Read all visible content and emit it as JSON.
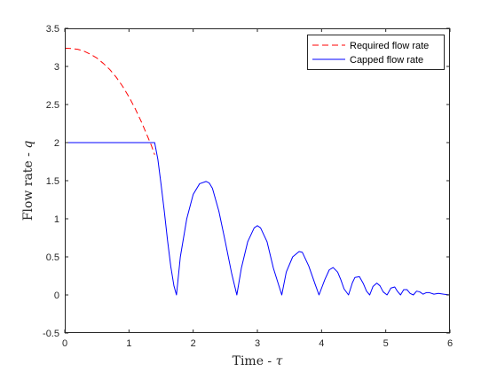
{
  "chart_data": {
    "type": "line",
    "title": "",
    "xlabel_prefix": "Time - ",
    "xlabel_symbol": "τ",
    "ylabel_prefix": "Flow rate - ",
    "ylabel_symbol": "q",
    "xlim": [
      0,
      6
    ],
    "ylim": [
      -0.5,
      3.5
    ],
    "xticks": [
      "0",
      "1",
      "2",
      "3",
      "4",
      "5",
      "6"
    ],
    "yticks": [
      "-0.5",
      "0",
      "0.5",
      "1",
      "1.5",
      "2",
      "2.5",
      "3",
      "3.5"
    ],
    "grid": false,
    "legend_position": "top-right",
    "series": [
      {
        "name": "Required flow rate",
        "color": "#ff0000",
        "style": "dashed",
        "x": [
          0,
          0.1,
          0.2,
          0.3,
          0.4,
          0.5,
          0.6,
          0.7,
          0.8,
          0.9,
          1.0,
          1.1,
          1.2,
          1.3,
          1.35,
          1.4
        ],
        "y": [
          3.24,
          3.235,
          3.225,
          3.2,
          3.16,
          3.11,
          3.04,
          2.96,
          2.86,
          2.74,
          2.6,
          2.44,
          2.26,
          2.06,
          1.96,
          1.84
        ]
      },
      {
        "name": "Capped flow rate",
        "color": "#0000ff",
        "style": "solid",
        "x": [
          0,
          1.2,
          1.4,
          1.45,
          1.5,
          1.55,
          1.6,
          1.65,
          1.7,
          1.74,
          1.8,
          1.9,
          2.0,
          2.1,
          2.2,
          2.25,
          2.3,
          2.4,
          2.5,
          2.6,
          2.68,
          2.75,
          2.85,
          2.95,
          3.0,
          3.05,
          3.15,
          3.25,
          3.38,
          3.45,
          3.55,
          3.65,
          3.7,
          3.8,
          3.9,
          3.96,
          4.05,
          4.12,
          4.18,
          4.25,
          4.3,
          4.35,
          4.42,
          4.48,
          4.52,
          4.59,
          4.65,
          4.7,
          4.75,
          4.8,
          4.86,
          4.91,
          4.96,
          5.02,
          5.08,
          5.14,
          5.18,
          5.23,
          5.28,
          5.33,
          5.38,
          5.43,
          5.48,
          5.53,
          5.58,
          5.63,
          5.68,
          5.75,
          5.82,
          5.9,
          6.0
        ],
        "y": [
          2.0,
          2.0,
          2.0,
          1.78,
          1.45,
          1.1,
          0.72,
          0.38,
          0.12,
          0.0,
          0.5,
          1.0,
          1.32,
          1.46,
          1.49,
          1.47,
          1.4,
          1.1,
          0.7,
          0.28,
          0.0,
          0.35,
          0.7,
          0.88,
          0.91,
          0.88,
          0.7,
          0.35,
          0.0,
          0.3,
          0.5,
          0.57,
          0.56,
          0.38,
          0.14,
          0.0,
          0.2,
          0.33,
          0.36,
          0.3,
          0.2,
          0.08,
          0.0,
          0.16,
          0.23,
          0.24,
          0.15,
          0.05,
          0.0,
          0.11,
          0.155,
          0.12,
          0.04,
          0.0,
          0.09,
          0.105,
          0.05,
          0.0,
          0.07,
          0.07,
          0.02,
          0.0,
          0.05,
          0.04,
          0.01,
          0.03,
          0.03,
          0.01,
          0.02,
          0.01,
          0.0
        ]
      }
    ]
  }
}
